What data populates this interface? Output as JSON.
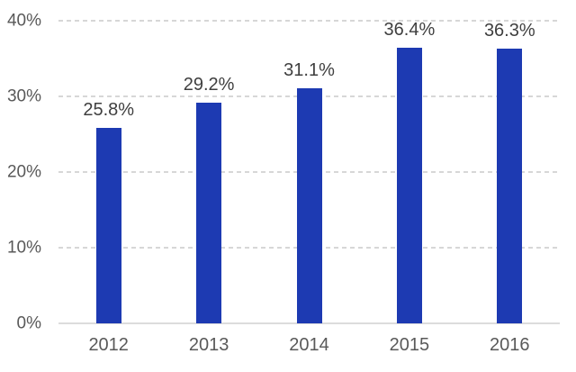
{
  "chart_data": {
    "type": "bar",
    "title": "",
    "xlabel": "",
    "ylabel": "",
    "categories": [
      "2012",
      "2013",
      "2014",
      "2015",
      "2016"
    ],
    "values": [
      25.8,
      29.2,
      31.1,
      36.4,
      36.3
    ],
    "data_labels": [
      "25.8%",
      "29.2%",
      "31.1%",
      "36.4%",
      "36.3%"
    ],
    "ylim": [
      0,
      40
    ],
    "ytick_step": 10,
    "ytick_labels": [
      "0%",
      "10%",
      "20%",
      "30%",
      "40%"
    ],
    "grid": "horizontal-dashed",
    "legend": "none",
    "colors": {
      "bar": "#1d3ab2",
      "axis_text": "#595959",
      "data_label_text": "#3f3f3f",
      "gridline": "#d7d7d7",
      "axis_line": "#dcdcdc",
      "background": "#ffffff"
    }
  }
}
